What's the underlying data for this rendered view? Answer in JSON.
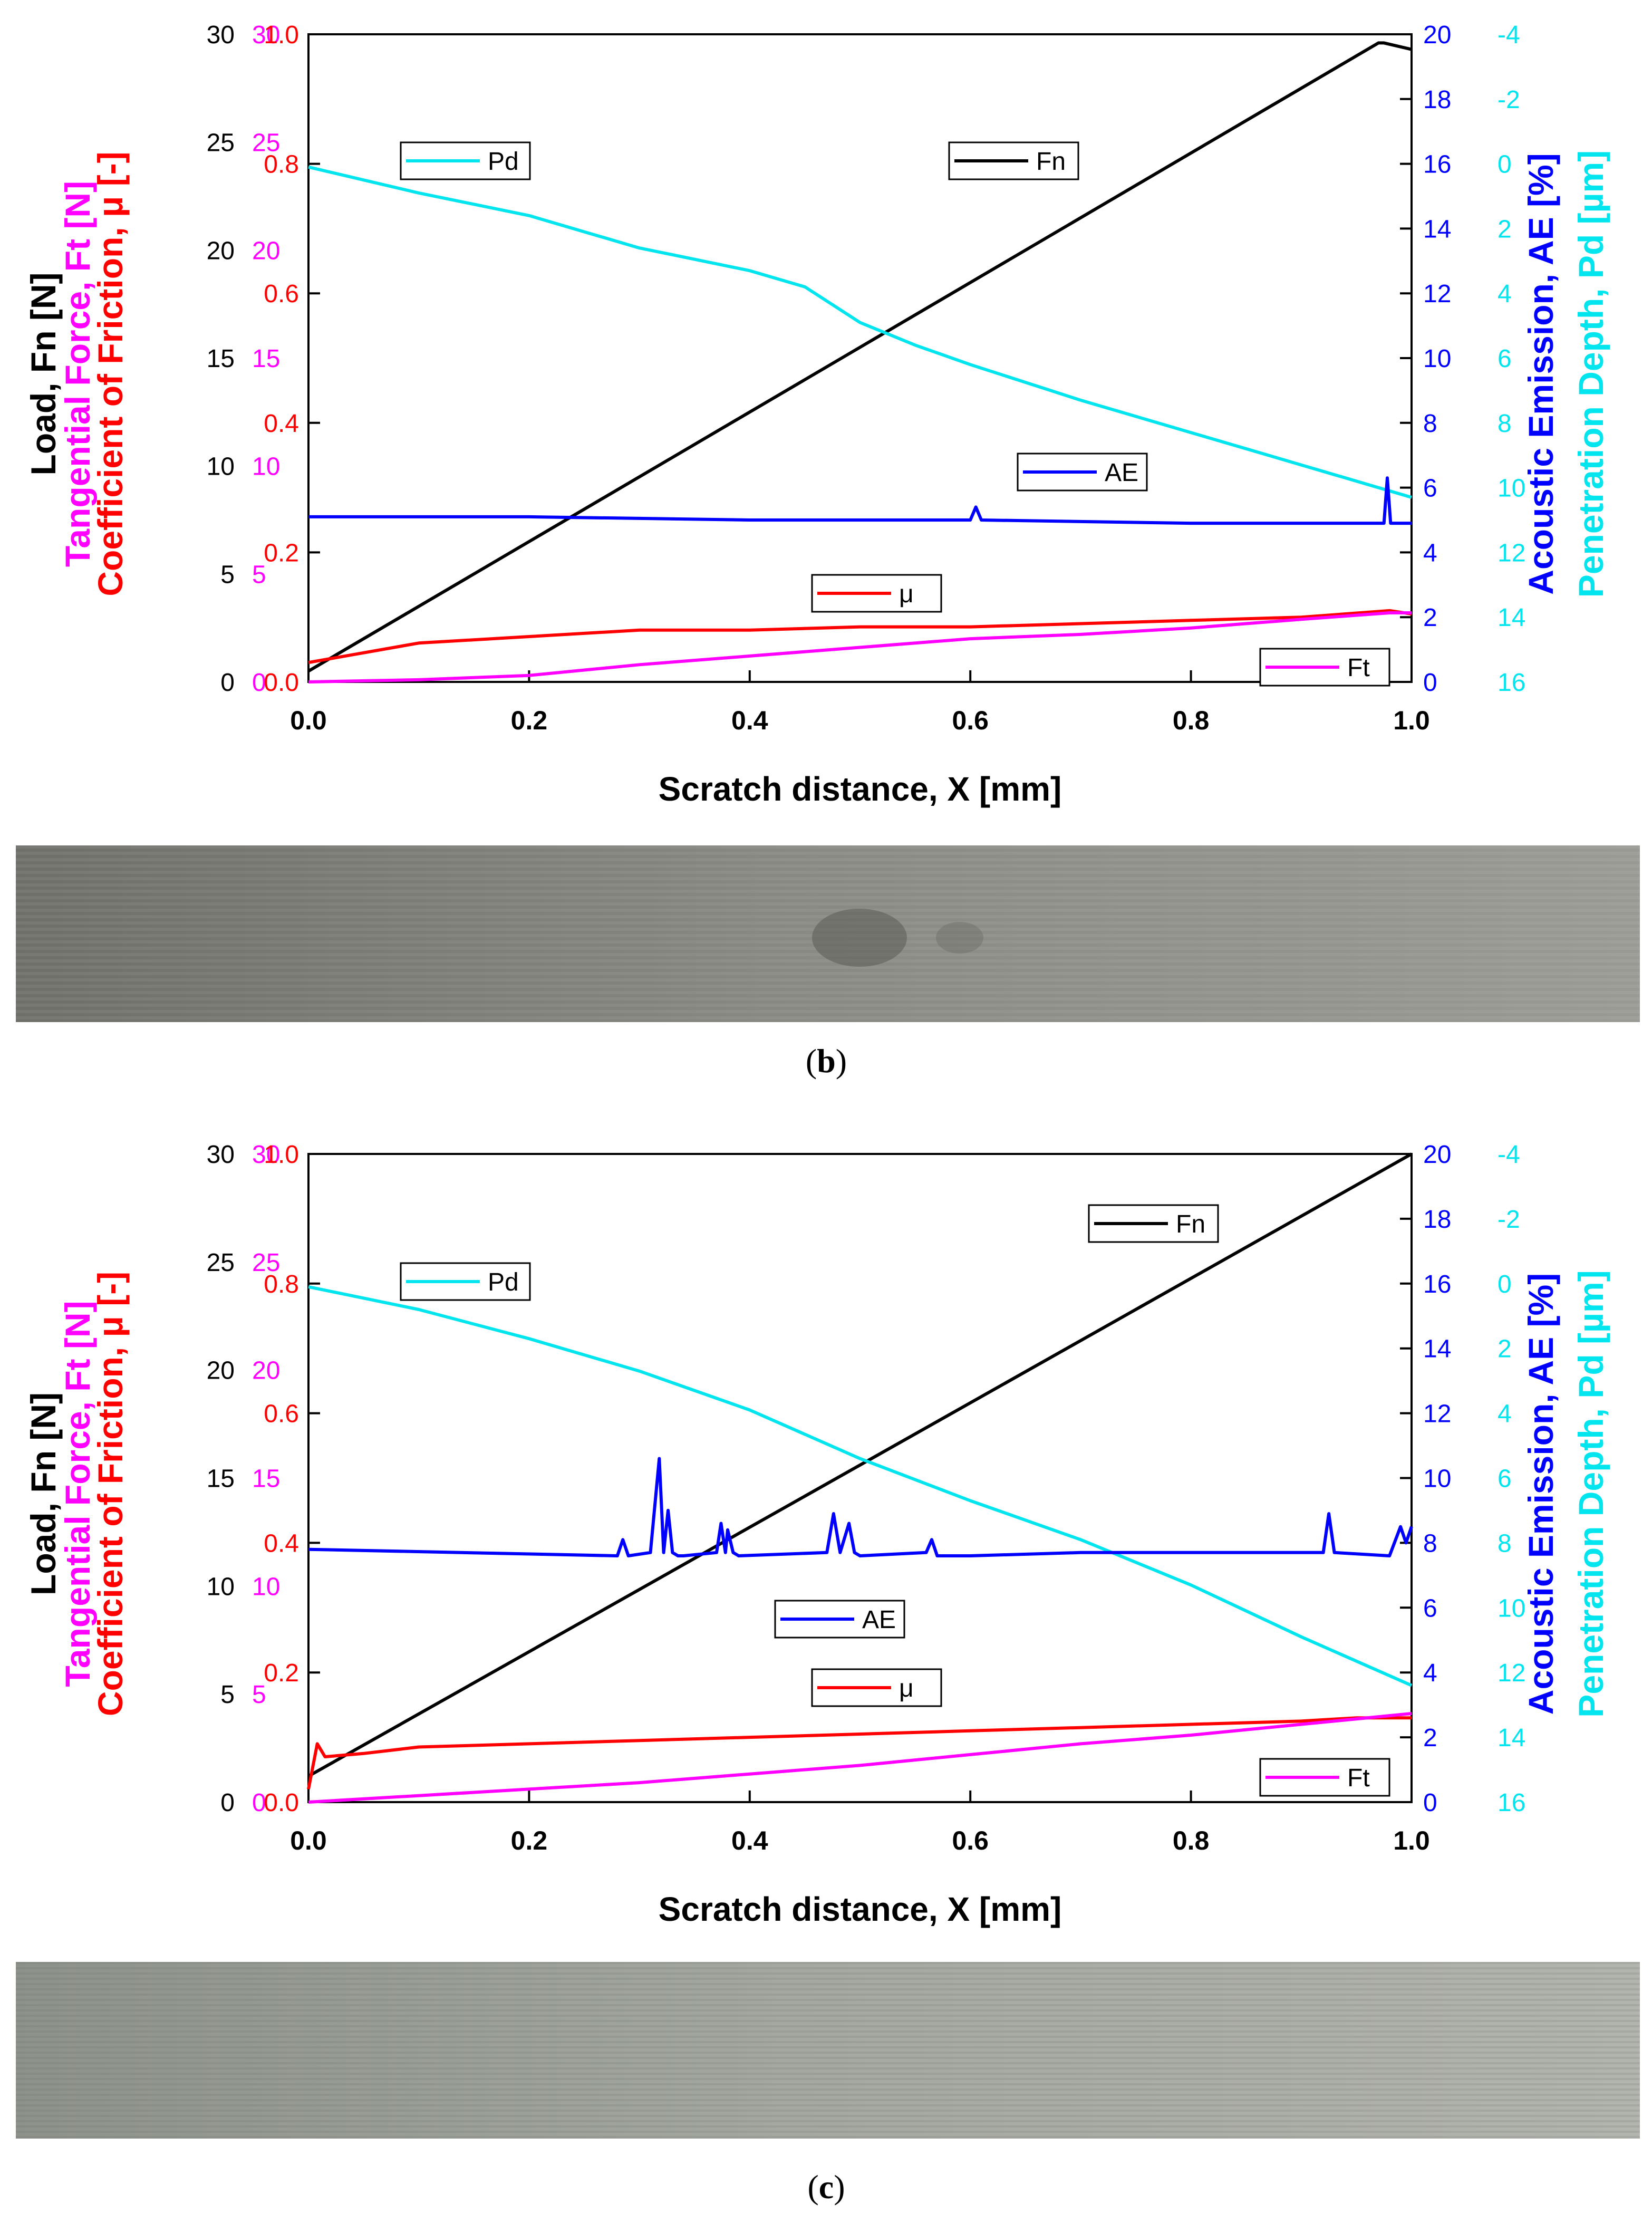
{
  "colors": {
    "fn": "#000000",
    "ft": "#ff00ff",
    "mu": "#ff0000",
    "ae": "#0000ff",
    "pd": "#00e5ee"
  },
  "panels": [
    {
      "caption_letter": "b",
      "micrograph_alt": "scratch track micrograph (b)",
      "chart_data": {
        "type": "line",
        "xlabel": "Scratch distance, X [mm]",
        "xlim": [
          0.0,
          1.0
        ],
        "x_ticks": [
          "0.0",
          "0.2",
          "0.4",
          "0.6",
          "0.8",
          "1.0"
        ],
        "left_axes": [
          {
            "key": "fn",
            "label": "Load, Fn [N]",
            "ticks": [
              "0",
              "5",
              "10",
              "15",
              "20",
              "25",
              "30"
            ]
          },
          {
            "key": "ft",
            "label": "Tangential Force, Ft [N]",
            "ticks": [
              "0",
              "5",
              "10",
              "15",
              "20",
              "25",
              "30"
            ]
          },
          {
            "key": "mu",
            "label": "Coefficient of Friction, μ [-]",
            "ticks": [
              "0.0",
              "0.2",
              "0.4",
              "0.6",
              "0.8",
              "1.0"
            ]
          }
        ],
        "right_axes": [
          {
            "key": "ae",
            "label": "Acoustic Emission, AE [%]",
            "ticks": [
              "0",
              "2",
              "4",
              "6",
              "8",
              "10",
              "12",
              "14",
              "16",
              "18",
              "20"
            ]
          },
          {
            "key": "pd",
            "label": "Penetration Depth, Pd [µm]",
            "ticks": [
              "16",
              "14",
              "12",
              "10",
              "8",
              "6",
              "4",
              "2",
              "0",
              "-2",
              "-4"
            ]
          }
        ],
        "legend": [
          {
            "key": "pd",
            "label": "Pd"
          },
          {
            "key": "fn",
            "label": "Fn"
          },
          {
            "key": "ae",
            "label": "AE"
          },
          {
            "key": "mu",
            "label": "μ"
          },
          {
            "key": "ft",
            "label": "Ft"
          }
        ],
        "series": [
          {
            "key": "fn",
            "name": "Fn",
            "axis": "fn",
            "x": [
              0,
              0.97,
              0.975,
              1.0
            ],
            "y": [
              0.5,
              29.6,
              29.6,
              29.3
            ]
          },
          {
            "key": "pd",
            "name": "Pd",
            "axis": "pd",
            "x": [
              0,
              0.05,
              0.1,
              0.2,
              0.3,
              0.4,
              0.45,
              0.5,
              0.55,
              0.6,
              0.7,
              0.8,
              0.9,
              0.97,
              1.0
            ],
            "y": [
              0.1,
              0.5,
              0.9,
              1.6,
              2.6,
              3.3,
              3.8,
              4.9,
              5.6,
              6.2,
              7.3,
              8.3,
              9.3,
              10.0,
              10.3
            ]
          },
          {
            "key": "ae",
            "name": "AE",
            "axis": "ae",
            "x": [
              0,
              0.2,
              0.4,
              0.6,
              0.605,
              0.61,
              0.8,
              0.975,
              0.978,
              0.981,
              1.0
            ],
            "y": [
              5.1,
              5.1,
              5.0,
              5.0,
              5.4,
              5.0,
              4.9,
              4.9,
              6.3,
              4.9,
              4.9
            ]
          },
          {
            "key": "mu",
            "name": "μ",
            "axis": "mu",
            "x": [
              0,
              0.1,
              0.2,
              0.3,
              0.4,
              0.5,
              0.6,
              0.7,
              0.8,
              0.9,
              0.98,
              1.0
            ],
            "y": [
              0.03,
              0.06,
              0.07,
              0.08,
              0.08,
              0.085,
              0.085,
              0.09,
              0.095,
              0.1,
              0.11,
              0.105
            ]
          },
          {
            "key": "ft",
            "name": "Ft",
            "axis": "ft",
            "x": [
              0,
              0.1,
              0.2,
              0.3,
              0.4,
              0.5,
              0.6,
              0.7,
              0.8,
              0.9,
              0.98,
              1.0
            ],
            "y": [
              0,
              0.1,
              0.3,
              0.8,
              1.2,
              1.6,
              2.0,
              2.2,
              2.5,
              2.9,
              3.2,
              3.2
            ]
          }
        ]
      }
    },
    {
      "caption_letter": "c",
      "micrograph_alt": "scratch track micrograph (c)",
      "chart_data": {
        "type": "line",
        "xlabel": "Scratch distance, X [mm]",
        "xlim": [
          0.0,
          1.0
        ],
        "x_ticks": [
          "0.0",
          "0.2",
          "0.4",
          "0.6",
          "0.8",
          "1.0"
        ],
        "left_axes": [
          {
            "key": "fn",
            "label": "Load, Fn [N]",
            "ticks": [
              "0",
              "5",
              "10",
              "15",
              "20",
              "25",
              "30"
            ]
          },
          {
            "key": "ft",
            "label": "Tangential Force, Ft [N]",
            "ticks": [
              "0",
              "5",
              "10",
              "15",
              "20",
              "25",
              "30"
            ]
          },
          {
            "key": "mu",
            "label": "Coefficient of Friction, μ [-]",
            "ticks": [
              "0.0",
              "0.2",
              "0.4",
              "0.6",
              "0.8",
              "1.0"
            ]
          }
        ],
        "right_axes": [
          {
            "key": "ae",
            "label": "Acoustic Emission, AE [%]",
            "ticks": [
              "0",
              "2",
              "4",
              "6",
              "8",
              "10",
              "12",
              "14",
              "16",
              "18",
              "20"
            ]
          },
          {
            "key": "pd",
            "label": "Penetration Depth, Pd [µm]",
            "ticks": [
              "16",
              "14",
              "12",
              "10",
              "8",
              "6",
              "4",
              "2",
              "0",
              "-2",
              "-4"
            ]
          }
        ],
        "legend": [
          {
            "key": "fn",
            "label": "Fn"
          },
          {
            "key": "pd",
            "label": "Pd"
          },
          {
            "key": "ae",
            "label": "AE"
          },
          {
            "key": "mu",
            "label": "μ"
          },
          {
            "key": "ft",
            "label": "Ft"
          }
        ],
        "series": [
          {
            "key": "fn",
            "name": "Fn",
            "axis": "fn",
            "x": [
              0,
              1.0
            ],
            "y": [
              1.2,
              30
            ]
          },
          {
            "key": "pd",
            "name": "Pd",
            "axis": "pd",
            "x": [
              0,
              0.1,
              0.2,
              0.3,
              0.4,
              0.5,
              0.6,
              0.7,
              0.8,
              0.9,
              1.0
            ],
            "y": [
              0.1,
              0.8,
              1.7,
              2.7,
              3.9,
              5.4,
              6.7,
              7.9,
              9.3,
              10.9,
              12.4
            ]
          },
          {
            "key": "ae",
            "name": "AE",
            "axis": "ae",
            "x": [
              0,
              0.28,
              0.285,
              0.29,
              0.31,
              0.318,
              0.322,
              0.326,
              0.33,
              0.335,
              0.34,
              0.37,
              0.374,
              0.378,
              0.38,
              0.385,
              0.39,
              0.47,
              0.476,
              0.482,
              0.49,
              0.495,
              0.5,
              0.56,
              0.565,
              0.57,
              0.6,
              0.7,
              0.92,
              0.925,
              0.93,
              0.98,
              0.99,
              0.995,
              1.0
            ],
            "y": [
              7.8,
              7.6,
              8.1,
              7.6,
              7.7,
              10.6,
              7.7,
              9.0,
              7.7,
              7.6,
              7.6,
              7.7,
              8.6,
              7.7,
              8.4,
              7.7,
              7.6,
              7.7,
              8.9,
              7.7,
              8.6,
              7.7,
              7.6,
              7.7,
              8.1,
              7.6,
              7.6,
              7.7,
              7.7,
              8.9,
              7.7,
              7.6,
              8.5,
              8.0,
              8.5
            ]
          },
          {
            "key": "mu",
            "name": "μ",
            "axis": "mu",
            "x": [
              0,
              0.008,
              0.015,
              0.05,
              0.1,
              0.2,
              0.3,
              0.4,
              0.5,
              0.6,
              0.7,
              0.8,
              0.9,
              0.95,
              1.0
            ],
            "y": [
              0.02,
              0.09,
              0.07,
              0.075,
              0.085,
              0.09,
              0.095,
              0.1,
              0.105,
              0.11,
              0.115,
              0.12,
              0.125,
              0.13,
              0.13
            ]
          },
          {
            "key": "ft",
            "name": "Ft",
            "axis": "ft",
            "x": [
              0,
              0.1,
              0.2,
              0.3,
              0.4,
              0.5,
              0.6,
              0.7,
              0.8,
              0.9,
              1.0
            ],
            "y": [
              0,
              0.3,
              0.6,
              0.9,
              1.3,
              1.7,
              2.2,
              2.7,
              3.1,
              3.6,
              4.1
            ]
          }
        ]
      }
    }
  ]
}
